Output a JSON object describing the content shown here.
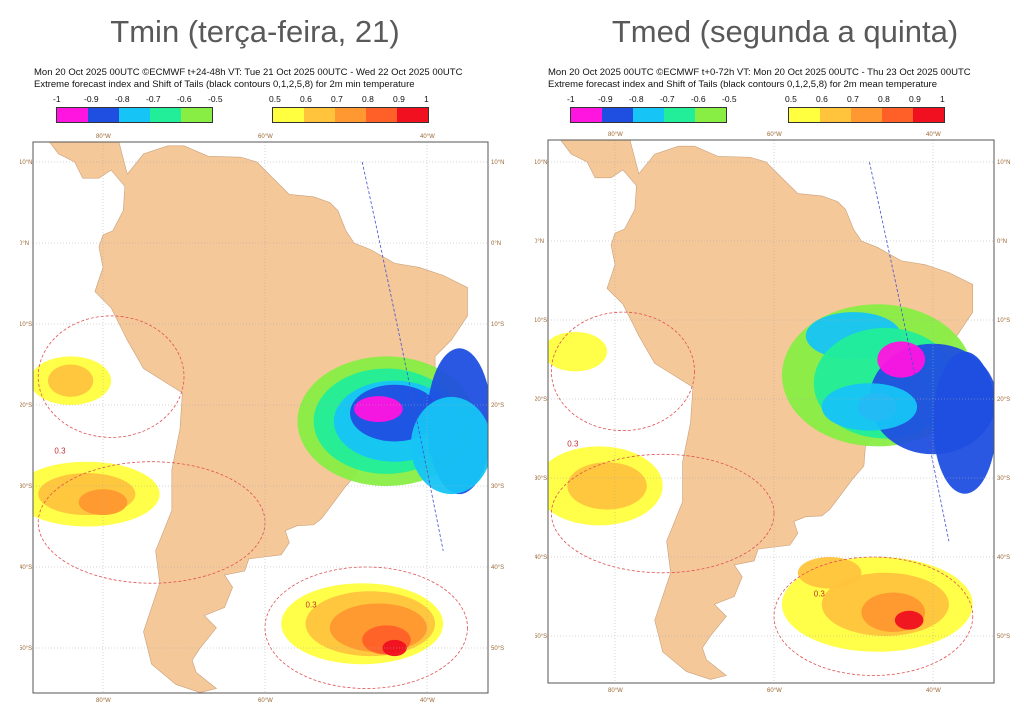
{
  "panels": [
    {
      "title": "Tmin (terça-feira, 21)",
      "line1": "Mon 20 Oct 2025 00UTC ©ECMWF t+24-48h  VT: Tue 21 Oct 2025 00UTC - Wed 22 Oct 2025 00UTC",
      "line2": "Extreme forecast index and Shift of Tails (black contours 0,1,2,5,8) for 2m min temperature"
    },
    {
      "title": "Tmed (segunda a quinta)",
      "line1": "Mon 20 Oct 2025 00UTC ©ECMWF t+0-72h  VT: Mon 20 Oct 2025 00UTC - Thu 23 Oct 2025 00UTC",
      "line2": "Extreme forecast index and Shift of Tails (black contours 0,1,2,5,8) for 2m mean temperature"
    }
  ],
  "colorbar": {
    "cold_labels": [
      "-1",
      "-0.9",
      "-0.8",
      "-0.7",
      "-0.6",
      "-0.5"
    ],
    "cold_colors": [
      "#ff14e0",
      "#1f4fe0",
      "#16c4f5",
      "#22ee99",
      "#88ee44"
    ],
    "warm_labels": [
      "0.5",
      "0.6",
      "0.7",
      "0.8",
      "0.9",
      "1"
    ],
    "warm_colors": [
      "#ffff40",
      "#ffc43c",
      "#ff9830",
      "#ff6028",
      "#f01020"
    ]
  },
  "axes": {
    "lon_labels": [
      "80°W",
      "60°W",
      "40°W"
    ],
    "lat_labels": [
      "10°N",
      "0°N",
      "10°S",
      "20°S",
      "30°S",
      "40°S",
      "50°S"
    ]
  },
  "contour_label": "0.3",
  "colors": {
    "land": "#f5c89a",
    "ocean": "#ffffff",
    "grid": "#aaaaaa"
  }
}
